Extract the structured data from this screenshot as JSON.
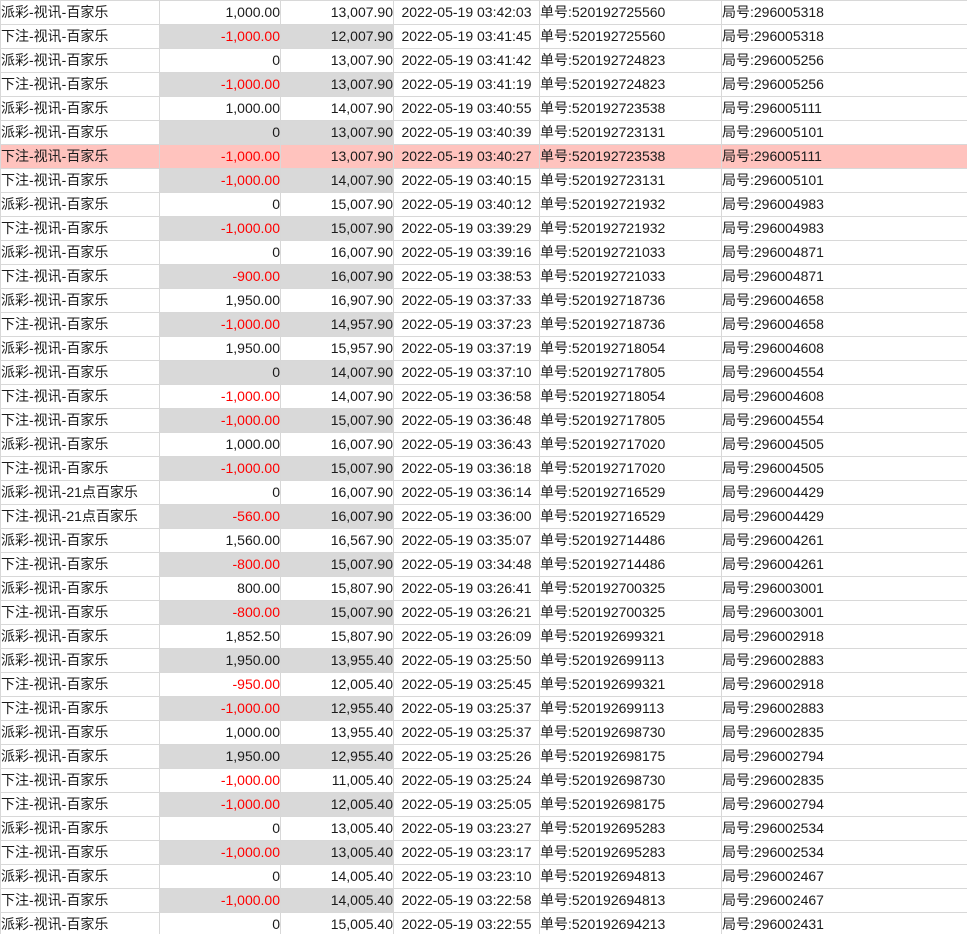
{
  "colors": {
    "negative_amount": "#ff0000",
    "stripe_cell_bg": "#d9d9d9",
    "highlight_row_bg": "#ffc3be",
    "border": "#d8d8d8",
    "text": "#1b1b1b"
  },
  "table": {
    "order_prefix": "单号:",
    "round_prefix": "局号:",
    "highlighted_row_number": 7,
    "rows": [
      {
        "type": "派彩-视讯-百家乐",
        "amount": "1,000.00",
        "balance": "13,007.90",
        "time": "2022-05-19 03:42:03",
        "order": "520192725560",
        "round": "296005318"
      },
      {
        "type": "下注-视讯-百家乐",
        "amount": "-1,000.00",
        "balance": "12,007.90",
        "time": "2022-05-19 03:41:45",
        "order": "520192725560",
        "round": "296005318"
      },
      {
        "type": "派彩-视讯-百家乐",
        "amount": "0",
        "balance": "13,007.90",
        "time": "2022-05-19 03:41:42",
        "order": "520192724823",
        "round": "296005256"
      },
      {
        "type": "下注-视讯-百家乐",
        "amount": "-1,000.00",
        "balance": "13,007.90",
        "time": "2022-05-19 03:41:19",
        "order": "520192724823",
        "round": "296005256"
      },
      {
        "type": "派彩-视讯-百家乐",
        "amount": "1,000.00",
        "balance": "14,007.90",
        "time": "2022-05-19 03:40:55",
        "order": "520192723538",
        "round": "296005111"
      },
      {
        "type": "派彩-视讯-百家乐",
        "amount": "0",
        "balance": "13,007.90",
        "time": "2022-05-19 03:40:39",
        "order": "520192723131",
        "round": "296005101"
      },
      {
        "type": "下注-视讯-百家乐",
        "amount": "-1,000.00",
        "balance": "13,007.90",
        "time": "2022-05-19 03:40:27",
        "order": "520192723538",
        "round": "296005111"
      },
      {
        "type": "下注-视讯-百家乐",
        "amount": "-1,000.00",
        "balance": "14,007.90",
        "time": "2022-05-19 03:40:15",
        "order": "520192723131",
        "round": "296005101"
      },
      {
        "type": "派彩-视讯-百家乐",
        "amount": "0",
        "balance": "15,007.90",
        "time": "2022-05-19 03:40:12",
        "order": "520192721932",
        "round": "296004983"
      },
      {
        "type": "下注-视讯-百家乐",
        "amount": "-1,000.00",
        "balance": "15,007.90",
        "time": "2022-05-19 03:39:29",
        "order": "520192721932",
        "round": "296004983"
      },
      {
        "type": "派彩-视讯-百家乐",
        "amount": "0",
        "balance": "16,007.90",
        "time": "2022-05-19 03:39:16",
        "order": "520192721033",
        "round": "296004871"
      },
      {
        "type": "下注-视讯-百家乐",
        "amount": "-900.00",
        "balance": "16,007.90",
        "time": "2022-05-19 03:38:53",
        "order": "520192721033",
        "round": "296004871"
      },
      {
        "type": "派彩-视讯-百家乐",
        "amount": "1,950.00",
        "balance": "16,907.90",
        "time": "2022-05-19 03:37:33",
        "order": "520192718736",
        "round": "296004658"
      },
      {
        "type": "下注-视讯-百家乐",
        "amount": "-1,000.00",
        "balance": "14,957.90",
        "time": "2022-05-19 03:37:23",
        "order": "520192718736",
        "round": "296004658"
      },
      {
        "type": "派彩-视讯-百家乐",
        "amount": "1,950.00",
        "balance": "15,957.90",
        "time": "2022-05-19 03:37:19",
        "order": "520192718054",
        "round": "296004608"
      },
      {
        "type": "派彩-视讯-百家乐",
        "amount": "0",
        "balance": "14,007.90",
        "time": "2022-05-19 03:37:10",
        "order": "520192717805",
        "round": "296004554"
      },
      {
        "type": "下注-视讯-百家乐",
        "amount": "-1,000.00",
        "balance": "14,007.90",
        "time": "2022-05-19 03:36:58",
        "order": "520192718054",
        "round": "296004608"
      },
      {
        "type": "下注-视讯-百家乐",
        "amount": "-1,000.00",
        "balance": "15,007.90",
        "time": "2022-05-19 03:36:48",
        "order": "520192717805",
        "round": "296004554"
      },
      {
        "type": "派彩-视讯-百家乐",
        "amount": "1,000.00",
        "balance": "16,007.90",
        "time": "2022-05-19 03:36:43",
        "order": "520192717020",
        "round": "296004505"
      },
      {
        "type": "下注-视讯-百家乐",
        "amount": "-1,000.00",
        "balance": "15,007.90",
        "time": "2022-05-19 03:36:18",
        "order": "520192717020",
        "round": "296004505"
      },
      {
        "type": "派彩-视讯-21点百家乐",
        "amount": "0",
        "balance": "16,007.90",
        "time": "2022-05-19 03:36:14",
        "order": "520192716529",
        "round": "296004429"
      },
      {
        "type": "下注-视讯-21点百家乐",
        "amount": "-560.00",
        "balance": "16,007.90",
        "time": "2022-05-19 03:36:00",
        "order": "520192716529",
        "round": "296004429"
      },
      {
        "type": "派彩-视讯-百家乐",
        "amount": "1,560.00",
        "balance": "16,567.90",
        "time": "2022-05-19 03:35:07",
        "order": "520192714486",
        "round": "296004261"
      },
      {
        "type": "下注-视讯-百家乐",
        "amount": "-800.00",
        "balance": "15,007.90",
        "time": "2022-05-19 03:34:48",
        "order": "520192714486",
        "round": "296004261"
      },
      {
        "type": "派彩-视讯-百家乐",
        "amount": "800.00",
        "balance": "15,807.90",
        "time": "2022-05-19 03:26:41",
        "order": "520192700325",
        "round": "296003001"
      },
      {
        "type": "下注-视讯-百家乐",
        "amount": "-800.00",
        "balance": "15,007.90",
        "time": "2022-05-19 03:26:21",
        "order": "520192700325",
        "round": "296003001"
      },
      {
        "type": "派彩-视讯-百家乐",
        "amount": "1,852.50",
        "balance": "15,807.90",
        "time": "2022-05-19 03:26:09",
        "order": "520192699321",
        "round": "296002918"
      },
      {
        "type": "派彩-视讯-百家乐",
        "amount": "1,950.00",
        "balance": "13,955.40",
        "time": "2022-05-19 03:25:50",
        "order": "520192699113",
        "round": "296002883"
      },
      {
        "type": "下注-视讯-百家乐",
        "amount": "-950.00",
        "balance": "12,005.40",
        "time": "2022-05-19 03:25:45",
        "order": "520192699321",
        "round": "296002918"
      },
      {
        "type": "下注-视讯-百家乐",
        "amount": "-1,000.00",
        "balance": "12,955.40",
        "time": "2022-05-19 03:25:37",
        "order": "520192699113",
        "round": "296002883"
      },
      {
        "type": "派彩-视讯-百家乐",
        "amount": "1,000.00",
        "balance": "13,955.40",
        "time": "2022-05-19 03:25:37",
        "order": "520192698730",
        "round": "296002835"
      },
      {
        "type": "派彩-视讯-百家乐",
        "amount": "1,950.00",
        "balance": "12,955.40",
        "time": "2022-05-19 03:25:26",
        "order": "520192698175",
        "round": "296002794"
      },
      {
        "type": "下注-视讯-百家乐",
        "amount": "-1,000.00",
        "balance": "11,005.40",
        "time": "2022-05-19 03:25:24",
        "order": "520192698730",
        "round": "296002835"
      },
      {
        "type": "下注-视讯-百家乐",
        "amount": "-1,000.00",
        "balance": "12,005.40",
        "time": "2022-05-19 03:25:05",
        "order": "520192698175",
        "round": "296002794"
      },
      {
        "type": "派彩-视讯-百家乐",
        "amount": "0",
        "balance": "13,005.40",
        "time": "2022-05-19 03:23:27",
        "order": "520192695283",
        "round": "296002534"
      },
      {
        "type": "下注-视讯-百家乐",
        "amount": "-1,000.00",
        "balance": "13,005.40",
        "time": "2022-05-19 03:23:17",
        "order": "520192695283",
        "round": "296002534"
      },
      {
        "type": "派彩-视讯-百家乐",
        "amount": "0",
        "balance": "14,005.40",
        "time": "2022-05-19 03:23:10",
        "order": "520192694813",
        "round": "296002467"
      },
      {
        "type": "下注-视讯-百家乐",
        "amount": "-1,000.00",
        "balance": "14,005.40",
        "time": "2022-05-19 03:22:58",
        "order": "520192694813",
        "round": "296002467"
      },
      {
        "type": "派彩-视讯-百家乐",
        "amount": "0",
        "balance": "15,005.40",
        "time": "2022-05-19 03:22:55",
        "order": "520192694213",
        "round": "296002431"
      }
    ]
  }
}
